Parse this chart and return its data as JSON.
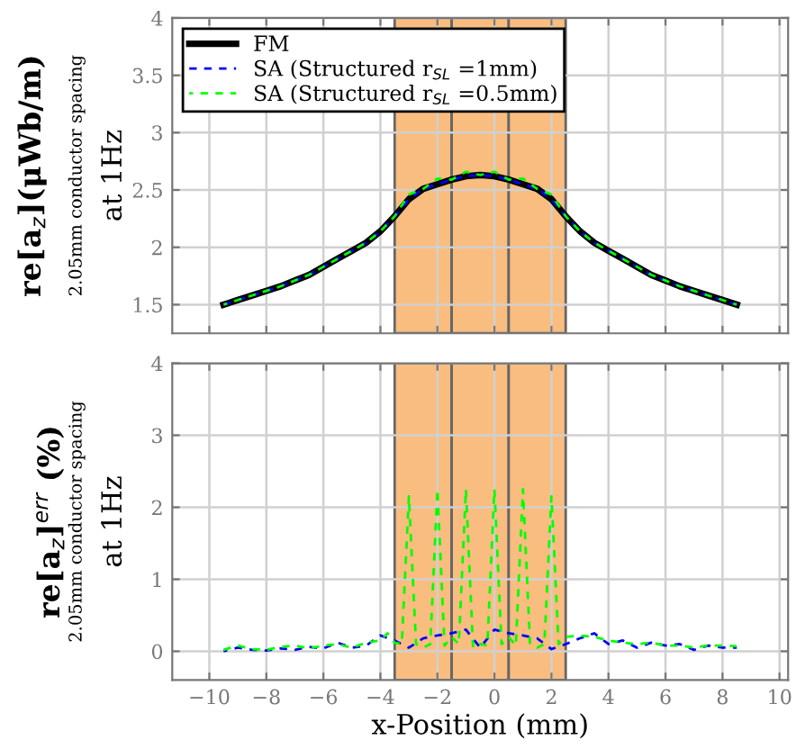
{
  "chart_data": [
    {
      "type": "line",
      "ylabel": "re[a$_{z}$](μWb/m)",
      "annotations": [
        "2.05mm conductor spacing",
        "at 1Hz"
      ],
      "xlim": [
        -11.3,
        10.3
      ],
      "xticks": [
        -10,
        -8,
        -6,
        -4,
        -2,
        0,
        2,
        4,
        6,
        8,
        10
      ],
      "ylim": [
        1.25,
        4
      ],
      "yticks": [
        1.5,
        2,
        2.5,
        3,
        3.5,
        4
      ],
      "tick_labels": "y",
      "grid": true,
      "legend": "top left",
      "bands": [
        {
          "axis": "x",
          "from": -3.5,
          "to": -1.5,
          "color": "#f9bd80"
        },
        {
          "axis": "x",
          "from": -1.5,
          "to": 0.5,
          "color": "#f9bd80"
        },
        {
          "axis": "x",
          "from": 0.5,
          "to": 2.5,
          "color": "#f9bd80"
        }
      ],
      "series": [
        {
          "name": "FM",
          "color": "#000000",
          "line_style": "solid",
          "x": [
            -9.5,
            -9,
            -8.5,
            -8,
            -7.5,
            -7,
            -6.5,
            -6,
            -5.5,
            -5,
            -4.5,
            -4,
            -3.5,
            -3,
            -2.5,
            -2,
            -1.5,
            -1,
            -0.5,
            0,
            0.5,
            1,
            1.5,
            2,
            2.5,
            3,
            3.5,
            4,
            4.5,
            5,
            5.5,
            6,
            6.5,
            7,
            7.5,
            8,
            8.5
          ],
          "values": [
            1.5,
            1.54,
            1.58,
            1.62,
            1.66,
            1.71,
            1.76,
            1.83,
            1.9,
            1.97,
            2.04,
            2.14,
            2.27,
            2.42,
            2.51,
            2.55,
            2.59,
            2.62,
            2.63,
            2.62,
            2.59,
            2.55,
            2.51,
            2.42,
            2.27,
            2.14,
            2.04,
            1.97,
            1.9,
            1.83,
            1.76,
            1.71,
            1.66,
            1.62,
            1.58,
            1.54,
            1.5
          ]
        },
        {
          "name": "SA (Structured r$_{SL}$ =1mm)",
          "color": "#0000ff",
          "line_style": "dashed",
          "x": [
            -9.5,
            -9,
            -8.5,
            -8,
            -7.5,
            -7,
            -6.5,
            -6,
            -5.5,
            -5,
            -4.5,
            -4,
            -3.5,
            -3,
            -2.5,
            -2,
            -1.5,
            -1,
            -0.5,
            0,
            0.5,
            1,
            1.5,
            2,
            2.5,
            3,
            3.5,
            4,
            4.5,
            5,
            5.5,
            6,
            6.5,
            7,
            7.5,
            8,
            8.5
          ],
          "values": [
            1.5,
            1.54,
            1.58,
            1.62,
            1.66,
            1.71,
            1.76,
            1.83,
            1.9,
            1.97,
            2.04,
            2.14,
            2.27,
            2.42,
            2.51,
            2.55,
            2.59,
            2.62,
            2.63,
            2.62,
            2.59,
            2.55,
            2.51,
            2.42,
            2.27,
            2.14,
            2.04,
            1.97,
            1.9,
            1.83,
            1.76,
            1.71,
            1.66,
            1.62,
            1.58,
            1.54,
            1.5
          ]
        },
        {
          "name": "SA (Structured r$_{SL}$ =0.5mm)",
          "color": "#00ff00",
          "line_style": "dashed",
          "x": [
            -9.5,
            -9,
            -8.5,
            -8,
            -7.5,
            -7,
            -6.5,
            -6,
            -5.5,
            -5,
            -4.5,
            -4,
            -3.5,
            -3,
            -2.5,
            -2,
            -1.5,
            -1,
            -0.5,
            0,
            0.5,
            1,
            1.5,
            2,
            2.5,
            3,
            3.5,
            4,
            4.5,
            5,
            5.5,
            6,
            6.5,
            7,
            7.5,
            8,
            8.5
          ],
          "values": [
            1.5,
            1.54,
            1.58,
            1.62,
            1.66,
            1.71,
            1.76,
            1.83,
            1.9,
            1.97,
            2.04,
            2.14,
            2.27,
            2.46,
            2.51,
            2.6,
            2.59,
            2.66,
            2.63,
            2.66,
            2.59,
            2.6,
            2.51,
            2.46,
            2.27,
            2.14,
            2.04,
            1.97,
            1.9,
            1.83,
            1.76,
            1.71,
            1.66,
            1.62,
            1.58,
            1.54,
            1.5
          ]
        }
      ]
    },
    {
      "type": "line",
      "ylabel": "re[a$_{z}$]$^{err}$ (%)",
      "xlabel": "x-Position (mm)",
      "annotations": [
        "2.05mm conductor spacing",
        "at 1Hz"
      ],
      "xlim": [
        -11.3,
        10.3
      ],
      "xticks": [
        -10,
        -8,
        -6,
        -4,
        -2,
        0,
        2,
        4,
        6,
        8,
        10
      ],
      "ylim": [
        -0.4,
        4
      ],
      "yticks": [
        0,
        1,
        2,
        3,
        4
      ],
      "grid": true,
      "bands": [
        {
          "axis": "x",
          "from": -3.5,
          "to": -1.5,
          "color": "#f9bd80"
        },
        {
          "axis": "x",
          "from": -1.5,
          "to": 0.5,
          "color": "#f9bd80"
        },
        {
          "axis": "x",
          "from": 0.5,
          "to": 2.5,
          "color": "#f9bd80"
        }
      ],
      "series": [
        {
          "color": "#0000ff",
          "line_style": "dashed",
          "x": [
            -9.5,
            -9,
            -8.5,
            -8,
            -7.5,
            -7,
            -6.5,
            -6,
            -5.5,
            -5,
            -4.5,
            -4,
            -3.5,
            -3,
            -2.5,
            -2,
            -1.5,
            -1,
            -0.5,
            0,
            0.5,
            1,
            1.5,
            2,
            2.5,
            3,
            3.5,
            4,
            4.5,
            5,
            5.5,
            6,
            6.5,
            7,
            7.5,
            8,
            8.5
          ],
          "values": [
            0,
            0.05,
            0.02,
            0.01,
            0.04,
            0.02,
            0.06,
            0.04,
            0.12,
            0.05,
            0.08,
            0.22,
            0.15,
            0.05,
            0.18,
            0.22,
            0.25,
            0.3,
            0.05,
            0.3,
            0.25,
            0.22,
            0.18,
            0.03,
            0.1,
            0.18,
            0.25,
            0.1,
            0.15,
            0.05,
            0.12,
            0.08,
            0.1,
            0.02,
            0.08,
            0.05,
            0.05
          ]
        },
        {
          "color": "#00ff00",
          "line_style": "dashed",
          "x": [
            -9.5,
            -9,
            -8.5,
            -8,
            -7.5,
            -7,
            -6.5,
            -6,
            -5.5,
            -5,
            -4.5,
            -4,
            -3.75,
            -3.5,
            -3.25,
            -3,
            -2.75,
            -2.5,
            -2.25,
            -2,
            -1.75,
            -1.5,
            -1.25,
            -1,
            -0.75,
            -0.5,
            -0.25,
            0,
            0.25,
            0.5,
            0.75,
            1,
            1.25,
            1.5,
            1.75,
            2,
            2.25,
            2.5,
            3,
            3.5,
            4,
            4.5,
            5,
            5.5,
            6,
            6.5,
            7,
            7.5,
            8,
            8.5
          ],
          "values": [
            0.02,
            0.08,
            0.03,
            0.02,
            0.06,
            0.08,
            0.04,
            0.08,
            0.1,
            0.05,
            0.12,
            0.15,
            0.25,
            0.12,
            0.1,
            2.15,
            0.1,
            0.05,
            0.1,
            2.25,
            0.08,
            0.2,
            0.1,
            2.25,
            0.05,
            0.1,
            0.08,
            2.25,
            0.1,
            0.2,
            0.08,
            2.25,
            0.1,
            0.05,
            0.1,
            2.15,
            0.1,
            0.2,
            0.22,
            0.2,
            0.15,
            0.12,
            0.1,
            0.12,
            0.08,
            0.08,
            0.05,
            0.08,
            0.08,
            0.07
          ]
        }
      ]
    }
  ]
}
